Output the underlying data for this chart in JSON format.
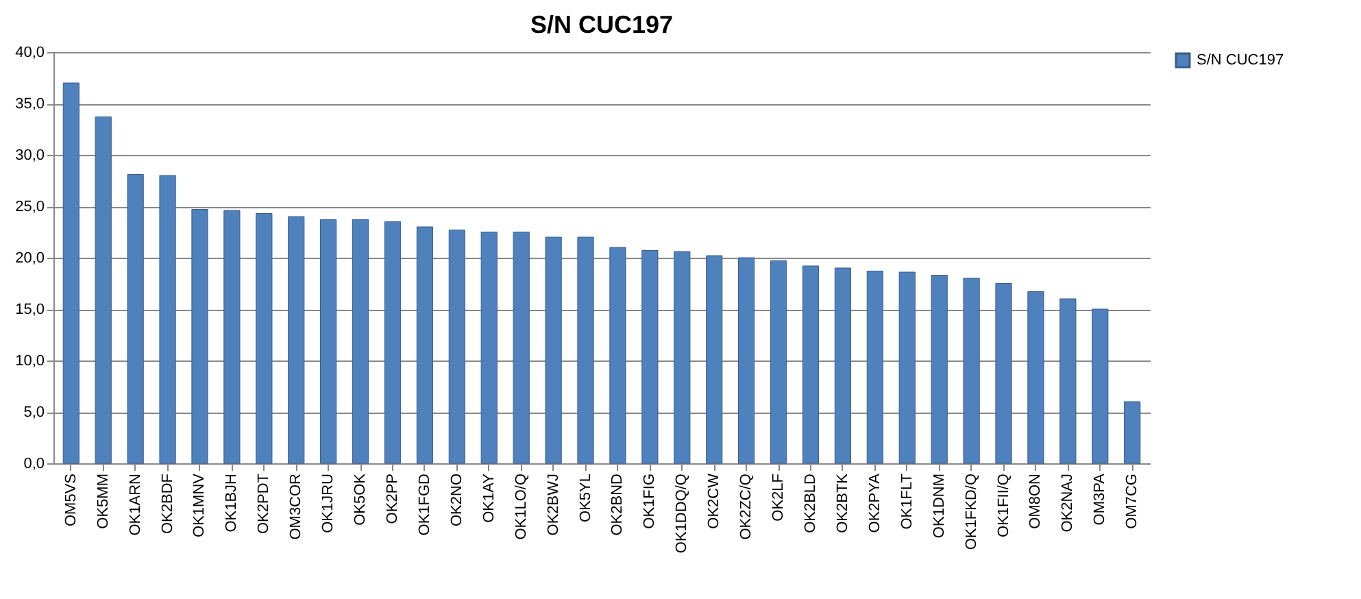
{
  "chart_data": {
    "type": "bar",
    "title": "S/N  CUC197",
    "categories": [
      "OM5VS",
      "OK5MM",
      "OK1ARN",
      "OK2BDF",
      "OK1MNV",
      "OK1BJH",
      "OK2PDT",
      "OM3COR",
      "OK1JRU",
      "OK5OK",
      "OK2PP",
      "OK1FGD",
      "OK2NO",
      "OK1AY",
      "OK1LO/Q",
      "OK2BWJ",
      "OK5YL",
      "OK2BND",
      "OK1FIG",
      "OK1DDQ/Q",
      "OK2CW",
      "OK2ZC/Q",
      "OK2LF",
      "OK2BLD",
      "OK2BTK",
      "OK2PYA",
      "OK1FLT",
      "OK1DNM",
      "OK1FKD/Q",
      "OK1FII/Q",
      "OM8ON",
      "OK2NAJ",
      "OM3PA",
      "OM7CG"
    ],
    "series": [
      {
        "name": "S/N  CUC197",
        "color": "#4f81bd",
        "values": [
          37.0,
          33.7,
          28.1,
          28.0,
          24.7,
          24.6,
          24.3,
          24.0,
          23.7,
          23.7,
          23.5,
          23.0,
          22.7,
          22.5,
          22.5,
          22.0,
          22.0,
          21.0,
          20.7,
          20.6,
          20.2,
          20.0,
          19.7,
          19.2,
          19.0,
          18.7,
          18.6,
          18.3,
          18.0,
          17.5,
          16.7,
          16.0,
          15.0,
          6.0
        ]
      }
    ],
    "ylim": [
      0,
      40
    ],
    "yticks": [
      {
        "value": 0,
        "label": "0,0"
      },
      {
        "value": 5,
        "label": "5,0"
      },
      {
        "value": 10,
        "label": "10,0"
      },
      {
        "value": 15,
        "label": "15,0"
      },
      {
        "value": 20,
        "label": "20,0"
      },
      {
        "value": 25,
        "label": "25,0"
      },
      {
        "value": 30,
        "label": "30,0"
      },
      {
        "value": 35,
        "label": "35,0"
      },
      {
        "value": 40,
        "label": "40,0"
      }
    ],
    "grid": "y",
    "legend": "right"
  }
}
